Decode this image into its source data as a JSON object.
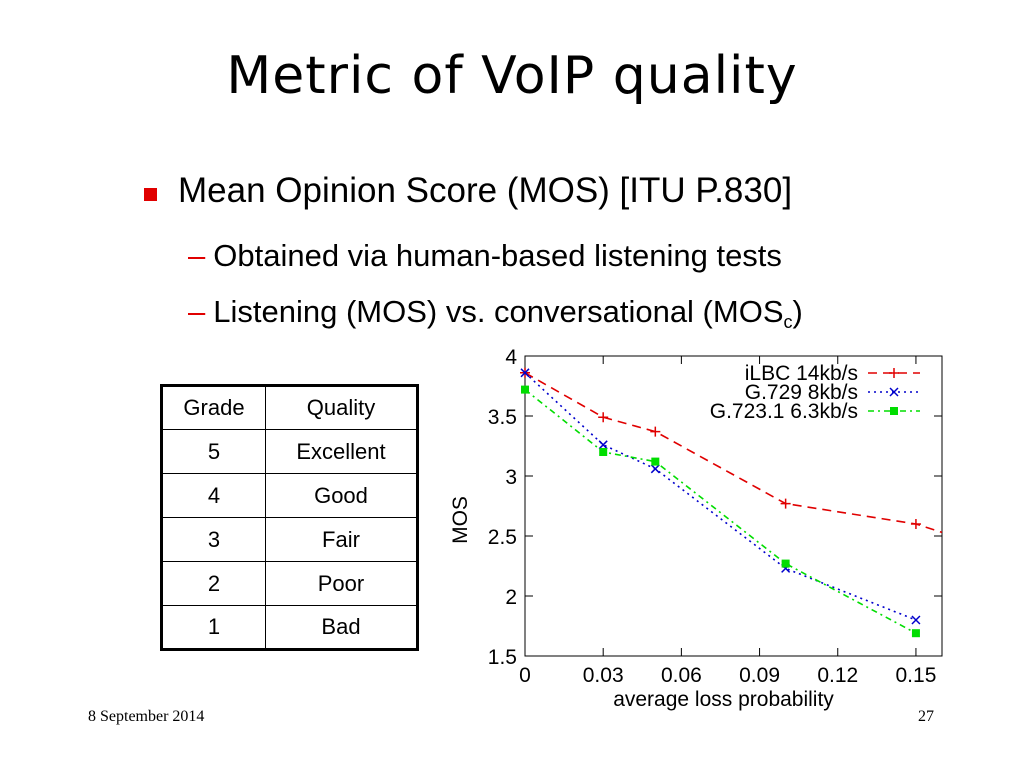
{
  "slide": {
    "title": "Metric of VoIP quality",
    "bullet": "Mean Opinion Score (MOS) [ITU P.830]",
    "sub1": "Obtained via human-based listening tests",
    "sub2_main": "Listening (MOS) vs. conversational (MOS",
    "sub2_subscript": "c",
    "sub2_end": ")",
    "dash": "–",
    "footer_date": "8 September 2014",
    "page_number": "27"
  },
  "table": {
    "headers": [
      "Grade",
      "Quality"
    ],
    "rows": [
      [
        "5",
        "Excellent"
      ],
      [
        "4",
        "Good"
      ],
      [
        "3",
        "Fair"
      ],
      [
        "2",
        "Poor"
      ],
      [
        "1",
        "Bad"
      ]
    ]
  },
  "chart_data": {
    "type": "line",
    "xlabel": "average loss probability",
    "ylabel": "MOS",
    "xlim": [
      0,
      0.16
    ],
    "ylim": [
      1.5,
      4
    ],
    "xticks": [
      "0",
      "0.03",
      "0.06",
      "0.09",
      "0.12",
      "0.15"
    ],
    "xtick_values": [
      0,
      0.03,
      0.06,
      0.09,
      0.12,
      0.15
    ],
    "yticks": [
      "1.5",
      "2",
      "2.5",
      "3",
      "3.5",
      "4"
    ],
    "ytick_values": [
      1.5,
      2,
      2.5,
      3,
      3.5,
      4
    ],
    "legend_position": "top-right",
    "series": [
      {
        "name": "iLBC 14kb/s",
        "color": "#e00000",
        "marker": "plus",
        "dash": "dashed",
        "x": [
          0,
          0.03,
          0.05,
          0.1,
          0.15,
          0.16
        ],
        "y": [
          3.86,
          3.49,
          3.37,
          2.77,
          2.6,
          2.53
        ]
      },
      {
        "name": "G.729 8kb/s",
        "color": "#0000cc",
        "marker": "x",
        "dash": "dotted",
        "x": [
          0,
          0.03,
          0.05,
          0.1,
          0.15
        ],
        "y": [
          3.86,
          3.26,
          3.06,
          2.23,
          1.8
        ]
      },
      {
        "name": "G.723.1 6.3kb/s",
        "color": "#00dd00",
        "marker": "square",
        "dash": "dashdot",
        "x": [
          0,
          0.03,
          0.05,
          0.1,
          0.15
        ],
        "y": [
          3.72,
          3.2,
          3.12,
          2.27,
          1.69
        ]
      }
    ]
  }
}
